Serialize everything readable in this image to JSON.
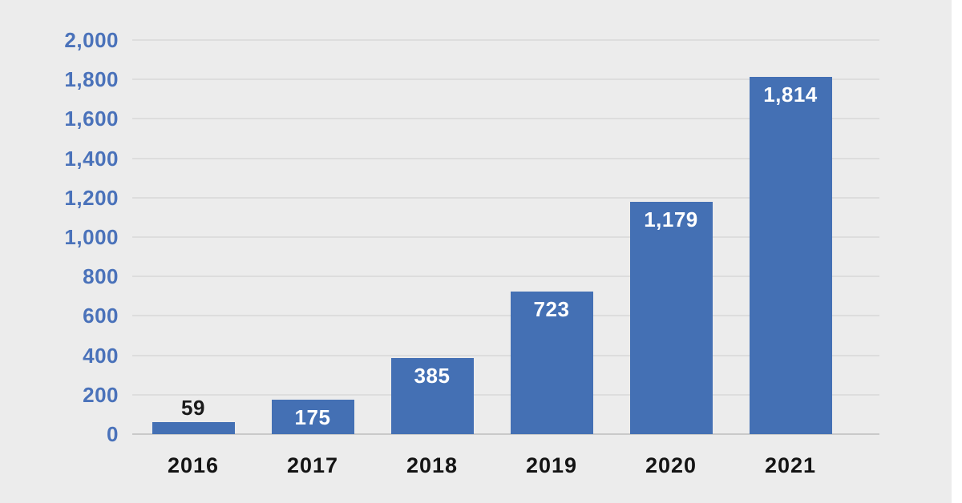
{
  "colors": {
    "background": "#ececec",
    "page_margin": "#ffffff",
    "bar_fill": "#4470b4",
    "gridline": "#dddddd",
    "baseline": "#c9c9c9",
    "y_tick_label": "#4a72ba",
    "x_tick_label": "#141414",
    "value_label_inside": "#ffffff",
    "value_label_outside": "#1b1b1b"
  },
  "chart_data": {
    "type": "bar",
    "categories": [
      "2016",
      "2017",
      "2018",
      "2019",
      "2020",
      "2021"
    ],
    "values": [
      59,
      175,
      385,
      723,
      1179,
      1814
    ],
    "value_labels": [
      "59",
      "175",
      "385",
      "723",
      "1,179",
      "1,814"
    ],
    "yticks": [
      {
        "value": 0,
        "label": "0"
      },
      {
        "value": 200,
        "label": "200"
      },
      {
        "value": 400,
        "label": "400"
      },
      {
        "value": 600,
        "label": "600"
      },
      {
        "value": 800,
        "label": "800"
      },
      {
        "value": 1000,
        "label": "1,000"
      },
      {
        "value": 1200,
        "label": "1,200"
      },
      {
        "value": 1400,
        "label": "1,400"
      },
      {
        "value": 1600,
        "label": "1,600"
      },
      {
        "value": 1800,
        "label": "1,800"
      },
      {
        "value": 2000,
        "label": "2,000"
      }
    ],
    "ylim": [
      0,
      2000
    ],
    "grid": true,
    "legend": false,
    "title": ""
  }
}
